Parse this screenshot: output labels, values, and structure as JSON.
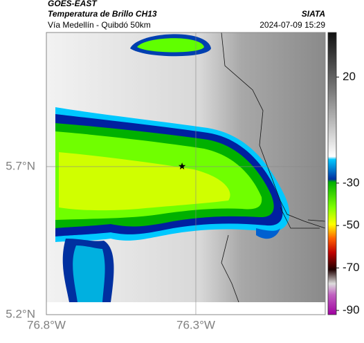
{
  "header": {
    "satellite": "GOES-EAST",
    "product": "Temperatura de Brillo CH13",
    "source": "SIATA",
    "route": "Vía Medellín - Quibdó 50km",
    "timestamp": "2024-07-09 15:29"
  },
  "chart_data": {
    "type": "map",
    "xlim": [
      -76.8,
      -75.867
    ],
    "ylim": [
      5.2,
      6.153
    ],
    "xticks": [
      {
        "value": -76.8,
        "label": "76.8°W"
      },
      {
        "value": -76.3,
        "label": "76.3°W"
      }
    ],
    "yticks": [
      {
        "value": 5.2,
        "label": "5.2°N"
      },
      {
        "value": 5.7,
        "label": "5.7°N"
      }
    ],
    "grid": true,
    "marker": {
      "lon": -76.346,
      "lat": 5.701
    },
    "colorbar": {
      "lim": [
        -92,
        41
      ],
      "ticks": [
        20,
        -30,
        -50,
        -70,
        -90
      ]
    }
  }
}
